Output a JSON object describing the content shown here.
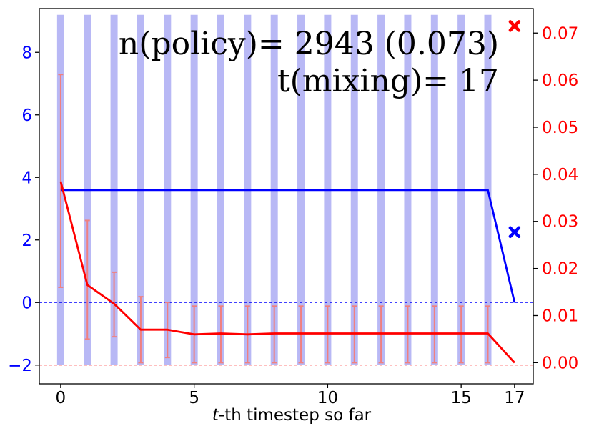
{
  "chart_data": {
    "type": "line",
    "title": "",
    "xlabel_italic": "t",
    "xlabel_rest": "-th timestep so far",
    "annotation_policy": "n(policy)= 2943 (0.073)",
    "annotation_mixing": "t(mixing)= 17",
    "xlim": [
      -0.8,
      17.7
    ],
    "x_ticks": [
      0,
      5,
      10,
      15,
      17
    ],
    "x_tick_labels": [
      "0",
      "5",
      "10",
      "15",
      "17"
    ],
    "left_axis": {
      "ylim": [
        -2.6,
        9.4
      ],
      "ticks": [
        -2,
        0,
        2,
        4,
        6,
        8
      ],
      "tick_labels": [
        "−2",
        "0",
        "2",
        "4",
        "6",
        "8"
      ],
      "color": "#0000ff"
    },
    "right_axis": {
      "ylim": [
        -0.0045,
        0.0752
      ],
      "ticks": [
        0.0,
        0.01,
        0.02,
        0.03,
        0.04,
        0.05,
        0.06,
        0.07
      ],
      "tick_labels": [
        "0.00",
        "0.01",
        "0.02",
        "0.03",
        "0.04",
        "0.05",
        "0.06",
        "0.07"
      ],
      "color": "#ff0000"
    },
    "bars": {
      "color": "#b8b8f5",
      "x": [
        0,
        1,
        2,
        3,
        4,
        5,
        6,
        7,
        8,
        9,
        10,
        11,
        12,
        13,
        14,
        15,
        16
      ],
      "bottom": -2,
      "top": 9.2
    },
    "series": [
      {
        "axis": "left",
        "color": "#0000ff",
        "x": [
          0,
          16,
          17
        ],
        "y": [
          3.6,
          3.6,
          0
        ]
      },
      {
        "axis": "right",
        "color": "#ff0000",
        "x": [
          0,
          1,
          2,
          3,
          4,
          5,
          6,
          7,
          8,
          9,
          10,
          11,
          12,
          13,
          14,
          15,
          16,
          17
        ],
        "y": [
          0.0385,
          0.0165,
          0.0125,
          0.007,
          0.007,
          0.006,
          0.0062,
          0.006,
          0.0062,
          0.0062,
          0.0062,
          0.0062,
          0.0062,
          0.0062,
          0.0062,
          0.0062,
          0.0062,
          0.0
        ]
      }
    ],
    "error_bars": {
      "axis": "right",
      "color": "#f08080",
      "x": [
        0,
        1,
        2,
        3,
        4,
        5,
        6,
        7,
        8,
        9,
        10,
        11,
        12,
        13,
        14,
        15,
        16
      ],
      "low": [
        0.016,
        0.005,
        0.0055,
        0.0,
        0.0011,
        0.0,
        0.0,
        0.0,
        0.0,
        0.0,
        0.0,
        0.0,
        0.0,
        0.0,
        0.0,
        0.0,
        0.0
      ],
      "high": [
        0.0612,
        0.0302,
        0.0192,
        0.014,
        0.0128,
        0.012,
        0.012,
        0.012,
        0.012,
        0.012,
        0.012,
        0.012,
        0.012,
        0.012,
        0.012,
        0.012,
        0.012
      ]
    },
    "markers": [
      {
        "axis": "right",
        "x": 17,
        "y": 0.0715,
        "color": "#ff0000",
        "shape": "x-marker"
      },
      {
        "axis": "left",
        "x": 17,
        "y": 2.25,
        "color": "#0000ff",
        "shape": "x-marker"
      }
    ],
    "reference_lines": [
      {
        "axis": "left",
        "y": 0,
        "color": "#0000ff",
        "style": "dashed"
      },
      {
        "axis": "left",
        "y": -2,
        "color": "#ff0000",
        "style": "dashed"
      }
    ]
  }
}
